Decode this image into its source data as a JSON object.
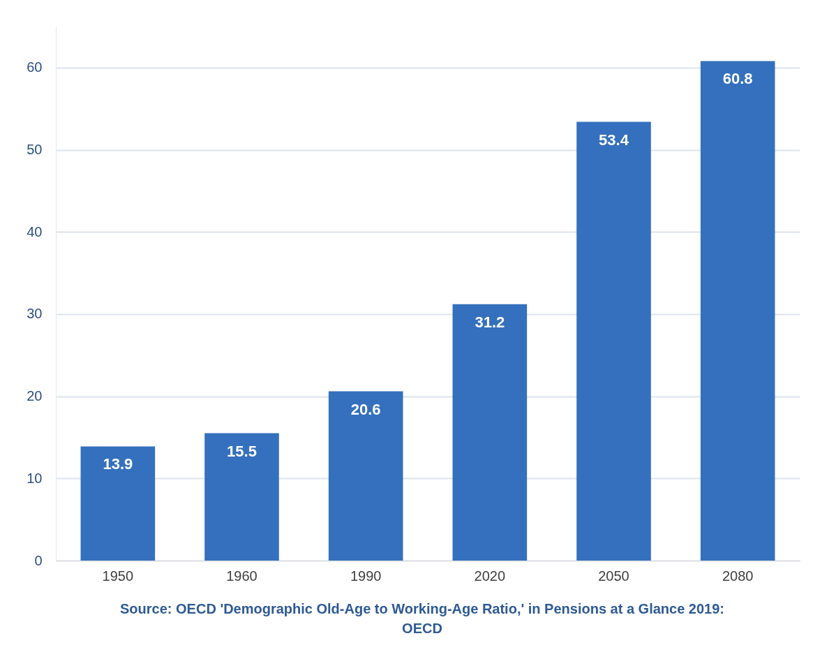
{
  "chart_data": {
    "type": "bar",
    "categories": [
      "1950",
      "1960",
      "1990",
      "2020",
      "2050",
      "2080"
    ],
    "values": [
      13.9,
      15.5,
      20.6,
      31.2,
      53.4,
      60.8
    ],
    "color": "#3470bd",
    "ylim": [
      0,
      65
    ],
    "yticks": [
      0,
      10,
      20,
      30,
      40,
      50,
      60
    ],
    "grid": "y",
    "data_labels": true,
    "annotations": [
      "Source: OECD 'Demographic Old-Age to Working-Age Ratio,' in Pensions at a Glance 2019: OECD"
    ]
  }
}
